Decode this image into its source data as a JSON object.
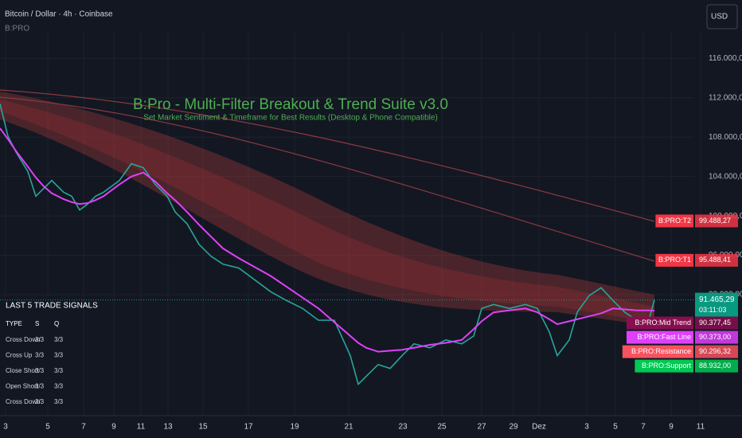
{
  "header": {
    "symbol": "Bitcoin / Dollar · 4h · Coinbase",
    "indicator": "B:PRO",
    "currency": "USD"
  },
  "chart_data": {
    "type": "line",
    "title": "B:Pro - Multi-Filter Breakout & Trend Suite v3.0",
    "subtitle": "Set Market Sentiment & Timeframe for Best Results (Desktop & Phone Compatible)",
    "x": [
      0,
      10,
      20,
      35,
      45,
      55,
      65,
      80,
      90,
      100,
      110,
      120,
      130,
      150,
      165,
      180,
      195,
      210,
      220,
      235,
      250,
      265,
      280,
      300,
      320,
      340,
      360,
      380,
      400,
      420,
      440,
      450,
      460,
      475,
      490,
      505,
      520,
      540,
      560,
      580,
      595,
      605,
      620,
      640,
      660,
      675,
      690,
      700,
      715,
      725,
      740,
      755,
      770,
      785,
      800,
      815,
      822
    ],
    "series": [
      {
        "name": "Price",
        "color": "#26a69a",
        "values": [
          111400,
          108100,
          106500,
          104500,
          102000,
          102800,
          103600,
          102400,
          102000,
          100600,
          101200,
          102000,
          102400,
          103600,
          105300,
          104900,
          103200,
          102000,
          100400,
          99200,
          97100,
          95900,
          95100,
          94700,
          93500,
          92300,
          91400,
          90600,
          89400,
          89400,
          85800,
          82900,
          83700,
          84900,
          84500,
          85800,
          87000,
          86600,
          87400,
          87000,
          87800,
          90600,
          91000,
          90600,
          91000,
          90600,
          88200,
          85800,
          87400,
          90200,
          91900,
          92700,
          91400,
          90200,
          89400,
          89400,
          91465
        ]
      },
      {
        "name": "Fast Line",
        "color": "#e040fb",
        "values": [
          108900,
          107800,
          106600,
          105000,
          103900,
          103000,
          102300,
          101700,
          101400,
          101200,
          101300,
          101600,
          102000,
          103200,
          104000,
          104400,
          103500,
          102300,
          101600,
          100400,
          99100,
          97900,
          96700,
          95700,
          94800,
          93900,
          92800,
          91700,
          90600,
          89200,
          87800,
          87100,
          86600,
          86200,
          86300,
          86400,
          86600,
          86900,
          87100,
          87400,
          88500,
          89300,
          90200,
          90400,
          90600,
          90200,
          89500,
          89000,
          89300,
          89500,
          89800,
          90100,
          90600,
          90500,
          90400,
          90400,
          90373
        ]
      }
    ],
    "xlim": [
      0,
      872
    ],
    "xticks": [
      {
        "value": 7,
        "label": "3"
      },
      {
        "value": 60,
        "label": "5"
      },
      {
        "value": 105,
        "label": "7"
      },
      {
        "value": 143,
        "label": "9"
      },
      {
        "value": 177,
        "label": "11"
      },
      {
        "value": 211,
        "label": "13"
      },
      {
        "value": 255,
        "label": "15"
      },
      {
        "value": 312,
        "label": "17"
      },
      {
        "value": 370,
        "label": "19"
      },
      {
        "value": 438,
        "label": "21"
      },
      {
        "value": 506,
        "label": "23"
      },
      {
        "value": 555,
        "label": "25"
      },
      {
        "value": 605,
        "label": "27"
      },
      {
        "value": 645,
        "label": "29"
      },
      {
        "value": 677,
        "label": "Dez"
      },
      {
        "value": 737,
        "label": "3"
      },
      {
        "value": 773,
        "label": "5"
      },
      {
        "value": 808,
        "label": "7"
      },
      {
        "value": 843,
        "label": "9"
      },
      {
        "value": 880,
        "label": "11"
      }
    ],
    "ylim": [
      79700,
      118700
    ],
    "yticks": [
      {
        "value": 116000,
        "label": "116.000,00"
      },
      {
        "value": 112000,
        "label": "112.000,00"
      },
      {
        "value": 108000,
        "label": "108.000,00"
      },
      {
        "value": 104000,
        "label": "104.000,00"
      },
      {
        "value": 100000,
        "label": "100.000,00"
      },
      {
        "value": 96000,
        "label": "96.000,00"
      },
      {
        "value": 92000,
        "label": "92.000,00"
      }
    ],
    "grid": true,
    "price_labels": [
      {
        "name": "B:PRO:T2",
        "value": 99488.27,
        "label": "99.488,27",
        "color": "#f23645"
      },
      {
        "name": "B:PRO:T1",
        "value": 95488.41,
        "label": "95.488,41",
        "color": "#f23645"
      },
      {
        "name": "B:PRO:Mid Trend",
        "value": 90377.45,
        "label": "90.377,45",
        "color": "#880e4f"
      },
      {
        "name": "B:PRO:Fast Line",
        "value": 90373.0,
        "label": "90.373,00",
        "color": "#e040fb"
      },
      {
        "name": "B:PRO:Resistance",
        "value": 90296.32,
        "label": "90.296,32",
        "color": "#f7525f"
      },
      {
        "name": "B:PRO:Support",
        "value": 88932.0,
        "label": "88.932,00",
        "color": "#00c853"
      }
    ],
    "last_price": {
      "value": 91465.29,
      "label": "91.465,29",
      "time": "03:11:03",
      "color": "#089981"
    }
  },
  "table": {
    "title": "LAST 5 TRADE SIGNALS",
    "headers": [
      "TYPE",
      "S",
      "Q"
    ],
    "rows": [
      [
        "Cross Down",
        "3/3",
        "3/3"
      ],
      [
        "Cross Up",
        "3/3",
        "3/3"
      ],
      [
        "Close Short",
        "3/3",
        "3/3"
      ],
      [
        "Open Short",
        "3/3",
        "3/3"
      ],
      [
        "Cross Down",
        "3/3",
        "3/3"
      ]
    ]
  }
}
